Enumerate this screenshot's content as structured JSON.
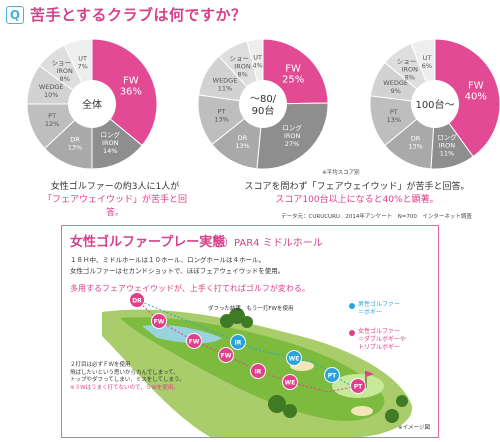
{
  "header": {
    "badge": "Q",
    "title": "苦手とするクラブは何ですか？"
  },
  "chart_data": [
    {
      "type": "pie",
      "center_label": [
        "全体"
      ],
      "slices": [
        {
          "name": "FW",
          "label": [
            "FW",
            "36%"
          ],
          "value": 36,
          "color": "#e24b94"
        },
        {
          "name": "ロングIRON",
          "label": [
            "ロング",
            "IRON",
            "14%"
          ],
          "value": 14,
          "color": "#8e8e8e"
        },
        {
          "name": "DR",
          "label": [
            "DR",
            "13%"
          ],
          "value": 13,
          "color": "#a9a9a9"
        },
        {
          "name": "PT",
          "label": [
            "PT",
            "12%"
          ],
          "value": 12,
          "color": "#bebebe"
        },
        {
          "name": "WEDGE",
          "label": [
            "WEDGE",
            "10%"
          ],
          "value": 10,
          "color": "#d2d2d2"
        },
        {
          "name": "ショートIRON",
          "label": [
            "ショート",
            "IRON",
            "8%"
          ],
          "value": 8,
          "color": "#dedede"
        },
        {
          "name": "UT",
          "label": [
            "UT",
            "7%"
          ],
          "value": 7,
          "color": "#eeeeee"
        }
      ]
    },
    {
      "type": "pie",
      "center_label": [
        "〜80/",
        "90台"
      ],
      "slices": [
        {
          "name": "FW",
          "label": [
            "FW",
            "25%"
          ],
          "value": 25,
          "color": "#e24b94"
        },
        {
          "name": "ロングIRON",
          "label": [
            "ロング",
            "IRON",
            "27%"
          ],
          "value": 27,
          "color": "#8e8e8e"
        },
        {
          "name": "DR",
          "label": [
            "DR",
            "13%"
          ],
          "value": 13,
          "color": "#a9a9a9"
        },
        {
          "name": "PT",
          "label": [
            "PT",
            "13%"
          ],
          "value": 13,
          "color": "#bebebe"
        },
        {
          "name": "WEDGE",
          "label": [
            "WEDGE",
            "11%"
          ],
          "value": 11,
          "color": "#d2d2d2"
        },
        {
          "name": "ショートIRON",
          "label": [
            "ショート",
            "IRON",
            "8%"
          ],
          "value": 8,
          "color": "#dedede"
        },
        {
          "name": "UT",
          "label": [
            "UT",
            "4%"
          ],
          "value": 4,
          "color": "#eeeeee"
        }
      ]
    },
    {
      "type": "pie",
      "center_label": [
        "100台〜"
      ],
      "slices": [
        {
          "name": "FW",
          "label": [
            "FW",
            "40%"
          ],
          "value": 40,
          "color": "#e24b94"
        },
        {
          "name": "ロングIRON",
          "label": [
            "ロング",
            "IRON",
            "11%"
          ],
          "value": 11,
          "color": "#8e8e8e"
        },
        {
          "name": "DR",
          "label": [
            "DR",
            "13%"
          ],
          "value": 13,
          "color": "#a9a9a9"
        },
        {
          "name": "PT",
          "label": [
            "PT",
            "13%"
          ],
          "value": 13,
          "color": "#bebebe"
        },
        {
          "name": "WEDGE",
          "label": [
            "WEDGE",
            "9%"
          ],
          "value": 9,
          "color": "#d2d2d2"
        },
        {
          "name": "ショートIRON",
          "label": [
            "ショート",
            "IRON",
            "8%"
          ],
          "value": 8,
          "color": "#dedede"
        },
        {
          "name": "UT",
          "label": [
            "UT",
            "6%"
          ],
          "value": 6,
          "color": "#eeeeee"
        }
      ]
    }
  ],
  "captions": {
    "left_line1": "女性ゴルファーの約3人に1人が",
    "left_line2": "「フェアウェイウッド」が苦手と回答。",
    "right_line1": "スコアを問わず「フェアウェイウッド」が苦手と回答。",
    "right_line2": "スコア100台以上になると40%と顕著。",
    "score_note": "※平均スコア別",
    "source": "データ元：CURUCURU　2014年アンケート　N=700　インターネット調査"
  },
  "panel": {
    "title": "女性ゴルファープレー実態",
    "subtitle": "例）PAR4 ミドルホール",
    "text1": "１８Ｈ中、ミドルホールは１０ホール、ロングホールは４ホール。",
    "text2": "女性ゴルファーはセカンドショットで、ほぼフェアウェイウッドを使用。",
    "pink_text": "多用するフェアウェイウッドが、上手く打てればゴルフが変わる。",
    "callout1": "ダフった結果、もう一打FWを使用",
    "callout2_lines": [
      "２打目は必ずＦＷを使用",
      "飛ばしたいという思いからカんでしまって、",
      "トップやダフってしまい、ミスをしてしまう。"
    ],
    "callout2_pink": "※３Wはうまく打てないので、５Wを使用。",
    "legend_blue_lines": [
      "男性ゴルファー",
      "＝ボギー"
    ],
    "legend_pink_lines": [
      "女性ゴルファー",
      "＝ダブルボギーや",
      "トリプルボギー"
    ],
    "image_note": "※イメージ図",
    "colors": {
      "blue": "#2aa3dc",
      "pink": "#e0408a",
      "border": "#e26aa6"
    },
    "markers": [
      {
        "label": "DR",
        "type": "female"
      },
      {
        "label": "FW",
        "type": "female"
      },
      {
        "label": "FW",
        "type": "female"
      },
      {
        "label": "IR",
        "type": "male"
      },
      {
        "label": "FW",
        "type": "female"
      },
      {
        "label": "WE",
        "type": "male"
      },
      {
        "label": "IR",
        "type": "female"
      },
      {
        "label": "PT",
        "type": "male"
      },
      {
        "label": "WE",
        "type": "female"
      },
      {
        "label": "PT",
        "type": "female"
      }
    ]
  }
}
